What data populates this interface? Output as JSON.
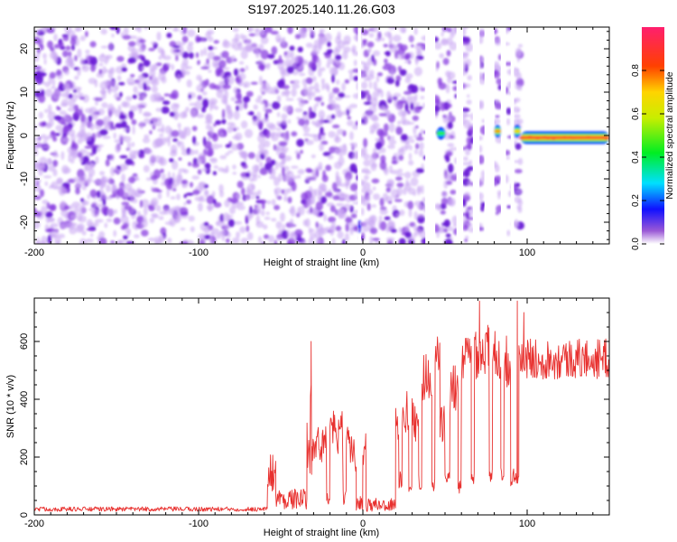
{
  "figure": {
    "title": "S197.2025.140.11.26.G03"
  },
  "chart_data": [
    {
      "type": "heatmap",
      "xlabel": "Height of straight line (km)",
      "ylabel": "Frequency (Hz)",
      "xlim": [
        -200,
        150
      ],
      "ylim": [
        -25,
        25
      ],
      "x_ticks": [
        -200,
        -100,
        0,
        100
      ],
      "y_ticks": [
        -20,
        -10,
        0,
        10,
        20
      ],
      "colorbar": {
        "label": "Normalized spectral amplitude",
        "range": [
          0,
          1
        ],
        "ticks": [
          "0.0",
          "0.2",
          "0.4",
          "0.6",
          "0.8"
        ]
      },
      "background_noise_color": "#8a2be2",
      "data_gaps_km": [
        [
          -3,
          -1
        ],
        [
          38,
          44
        ],
        [
          57,
          61
        ],
        [
          67,
          71
        ],
        [
          74,
          80
        ],
        [
          84,
          87
        ],
        [
          90,
          92
        ]
      ],
      "features": [
        {
          "x_range": [
            -3,
            -1
          ],
          "freq": -21,
          "amplitude": 0.15
        },
        {
          "x_range": [
            45,
            50
          ],
          "freq": 0.5,
          "amplitude": 0.45
        },
        {
          "x_range": [
            80,
            84
          ],
          "freq": 1,
          "amplitude": 0.75
        },
        {
          "x_range": [
            92,
            96
          ],
          "freq": 1,
          "amplitude": 0.7
        },
        {
          "x_range": [
            96,
            150
          ],
          "freq": -0.5,
          "amplitude": 0.9
        }
      ]
    },
    {
      "type": "line",
      "xlabel": "Height of straight line (km)",
      "ylabel": "SNR (10 * v/v)",
      "xlim": [
        -200,
        150
      ],
      "ylim": [
        0,
        750
      ],
      "x_ticks": [
        -200,
        -100,
        0,
        100
      ],
      "y_ticks": [
        0,
        200,
        400,
        600
      ],
      "line_color": "#e8312f",
      "segments": [
        {
          "x": [
            -200,
            -58
          ],
          "level": 20,
          "noise": 8
        },
        {
          "x": [
            -58,
            -53
          ],
          "level": 150,
          "noise": 70
        },
        {
          "x": [
            -53,
            -34
          ],
          "level": 55,
          "noise": 35
        },
        {
          "x": [
            -34,
            -31
          ],
          "level": 330,
          "noise": 200
        },
        {
          "x": [
            -31,
            -22
          ],
          "level": 240,
          "noise": 70
        },
        {
          "x": [
            -22,
            -20
          ],
          "level": 60,
          "noise": 25
        },
        {
          "x": [
            -20,
            -12
          ],
          "level": 280,
          "noise": 80
        },
        {
          "x": [
            -12,
            -10
          ],
          "level": 60,
          "noise": 25
        },
        {
          "x": [
            -10,
            -4
          ],
          "level": 230,
          "noise": 80
        },
        {
          "x": [
            -4,
            0
          ],
          "level": 40,
          "noise": 25
        },
        {
          "x": [
            0,
            2
          ],
          "level": 230,
          "noise": 70
        },
        {
          "x": [
            2,
            20
          ],
          "level": 35,
          "noise": 25
        },
        {
          "x": [
            20,
            22
          ],
          "level": 300,
          "noise": 80
        },
        {
          "x": [
            22,
            24
          ],
          "level": 120,
          "noise": 30
        },
        {
          "x": [
            24,
            28
          ],
          "level": 360,
          "noise": 80
        },
        {
          "x": [
            28,
            30
          ],
          "level": 110,
          "noise": 30
        },
        {
          "x": [
            30,
            34
          ],
          "level": 330,
          "noise": 80
        },
        {
          "x": [
            34,
            36
          ],
          "level": 110,
          "noise": 30
        },
        {
          "x": [
            36,
            42
          ],
          "level": 480,
          "noise": 90
        },
        {
          "x": [
            42,
            44
          ],
          "level": 100,
          "noise": 25
        },
        {
          "x": [
            44,
            47
          ],
          "level": 560,
          "noise": 70
        },
        {
          "x": [
            47,
            50
          ],
          "level": 300,
          "noise": 80
        },
        {
          "x": [
            50,
            53
          ],
          "level": 120,
          "noise": 30
        },
        {
          "x": [
            53,
            58
          ],
          "level": 420,
          "noise": 100
        },
        {
          "x": [
            58,
            60
          ],
          "level": 100,
          "noise": 25
        },
        {
          "x": [
            60,
            66
          ],
          "level": 540,
          "noise": 90
        },
        {
          "x": [
            66,
            68
          ],
          "level": 130,
          "noise": 30
        },
        {
          "x": [
            68,
            77
          ],
          "level": 570,
          "noise": 100
        },
        {
          "x": [
            77,
            79
          ],
          "level": 130,
          "noise": 30
        },
        {
          "x": [
            79,
            84
          ],
          "level": 560,
          "noise": 90
        },
        {
          "x": [
            84,
            86
          ],
          "level": 140,
          "noise": 30
        },
        {
          "x": [
            86,
            90
          ],
          "level": 530,
          "noise": 90
        },
        {
          "x": [
            90,
            95
          ],
          "level": 130,
          "noise": 30
        },
        {
          "x": [
            95,
            150
          ],
          "level": 540,
          "noise": 70
        }
      ],
      "peaks": [
        {
          "x": -31.5,
          "y": 600
        },
        {
          "x": 71,
          "y": 740
        },
        {
          "x": 94,
          "y": 740
        },
        {
          "x": 98,
          "y": 700
        }
      ]
    }
  ]
}
